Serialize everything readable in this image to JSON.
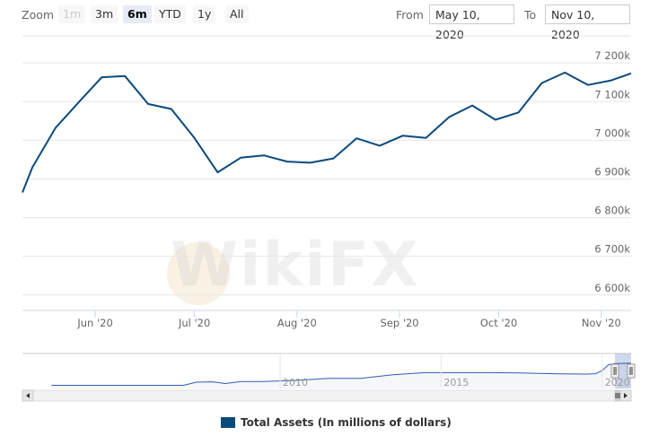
{
  "rangeSelector": {
    "zoom_label": "Zoom",
    "buttons": [
      {
        "label": "1m",
        "state": "disabled"
      },
      {
        "label": "3m",
        "state": "normal"
      },
      {
        "label": "6m",
        "state": "active"
      },
      {
        "label": "YTD",
        "state": "normal"
      },
      {
        "label": "1y",
        "state": "normal"
      },
      {
        "label": "All",
        "state": "normal"
      }
    ],
    "from_label": "From",
    "from_value": "May 10, 2020",
    "to_label": "To",
    "to_value": "Nov 10, 2020"
  },
  "watermark": "WikiFX",
  "chart_data": {
    "type": "line",
    "title": "",
    "xlabel": "",
    "ylabel": "",
    "series": [
      {
        "name": "Total Assets (In millions of dollars)",
        "color": "#0b4a7c",
        "x": [
          "2020-05-10",
          "2020-05-13",
          "2020-05-20",
          "2020-05-27",
          "2020-06-03",
          "2020-06-10",
          "2020-06-17",
          "2020-06-24",
          "2020-07-01",
          "2020-07-08",
          "2020-07-15",
          "2020-07-22",
          "2020-07-29",
          "2020-08-05",
          "2020-08-12",
          "2020-08-19",
          "2020-08-26",
          "2020-09-02",
          "2020-09-09",
          "2020-09-16",
          "2020-09-23",
          "2020-09-30",
          "2020-10-07",
          "2020-10-14",
          "2020-10-21",
          "2020-10-28",
          "2020-11-04",
          "2020-11-10"
        ],
        "y": [
          6865,
          6930,
          7032,
          7098,
          7163,
          7166,
          7094,
          7081,
          7006,
          6917,
          6955,
          6961,
          6945,
          6942,
          6953,
          7005,
          6986,
          7012,
          7006,
          7060,
          7090,
          7053,
          7072,
          7148,
          7175,
          7143,
          7155,
          7173
        ]
      }
    ],
    "yaxis": {
      "ticks": [
        6600,
        6700,
        6800,
        6900,
        7000,
        7100,
        7200
      ],
      "tick_labels": [
        "6 600k",
        "6 700k",
        "6 800k",
        "6 900k",
        "7 000k",
        "7 100k",
        "7 200k"
      ],
      "range": [
        6560,
        7270
      ],
      "position": "right",
      "grid": true
    },
    "xaxis": {
      "tick_labels": [
        "Jun '20",
        "Jul '20",
        "Aug '20",
        "Sep '20",
        "Oct '20",
        "Nov '20"
      ],
      "tick_dates": [
        "2020-06-01",
        "2020-07-01",
        "2020-08-01",
        "2020-09-01",
        "2020-10-01",
        "2020-11-01"
      ],
      "range": [
        "2020-05-10",
        "2020-11-10"
      ]
    },
    "navigator": {
      "year_labels": [
        "2010",
        "2015",
        "2020"
      ],
      "x": [
        2002.9,
        2003.5,
        2004.5,
        2005.5,
        2006.5,
        2007.0,
        2007.4,
        2007.9,
        2008.3,
        2008.8,
        2009.5,
        2010.5,
        2011.5,
        2012.5,
        2013.5,
        2014.5,
        2015.5,
        2016.5,
        2017.5,
        2018.5,
        2019.5,
        2019.8,
        2020.0,
        2020.2,
        2020.4,
        2020.9
      ],
      "y": [
        0.9,
        0.9,
        0.9,
        0.9,
        0.9,
        0.9,
        1.8,
        1.9,
        1.4,
        2.0,
        2.0,
        2.3,
        2.9,
        2.9,
        3.9,
        4.5,
        4.5,
        4.5,
        4.4,
        4.2,
        4.1,
        4.2,
        5.1,
        6.8,
        7.1,
        7.2
      ]
    },
    "legend": {
      "placement": "bottom-center"
    }
  }
}
